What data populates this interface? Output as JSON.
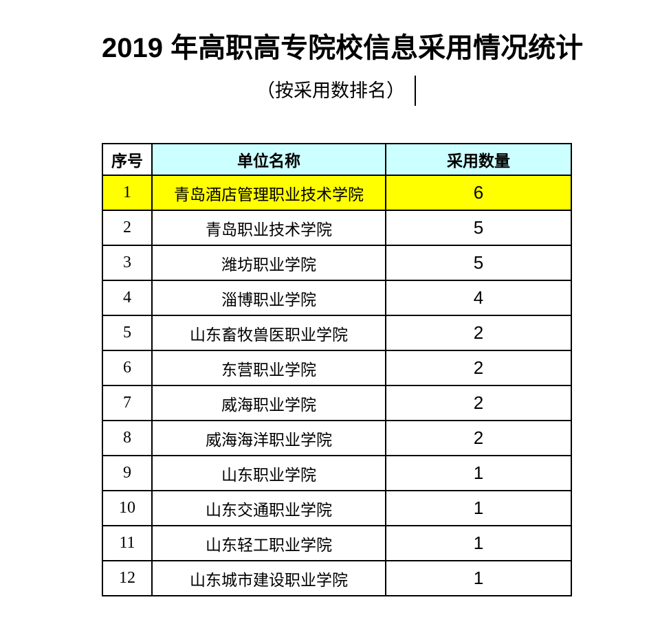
{
  "title": "2019 年高职高专院校信息采用情况统计",
  "subtitle": "（按采用数排名）",
  "table": {
    "headers": [
      "序号",
      "单位名称",
      "采用数量"
    ],
    "rows": [
      {
        "rank": "1",
        "name": "青岛酒店管理职业技术学院",
        "count": "6",
        "highlighted": true
      },
      {
        "rank": "2",
        "name": "青岛职业技术学院",
        "count": "5",
        "highlighted": false
      },
      {
        "rank": "3",
        "name": "潍坊职业学院",
        "count": "5",
        "highlighted": false
      },
      {
        "rank": "4",
        "name": "淄博职业学院",
        "count": "4",
        "highlighted": false
      },
      {
        "rank": "5",
        "name": "山东畜牧兽医职业学院",
        "count": "2",
        "highlighted": false
      },
      {
        "rank": "6",
        "name": "东营职业学院",
        "count": "2",
        "highlighted": false
      },
      {
        "rank": "7",
        "name": "威海职业学院",
        "count": "2",
        "highlighted": false
      },
      {
        "rank": "8",
        "name": "威海海洋职业学院",
        "count": "2",
        "highlighted": false
      },
      {
        "rank": "9",
        "name": "山东职业学院",
        "count": "1",
        "highlighted": false
      },
      {
        "rank": "10",
        "name": "山东交通职业学院",
        "count": "1",
        "highlighted": false
      },
      {
        "rank": "11",
        "name": "山东轻工职业学院",
        "count": "1",
        "highlighted": false
      },
      {
        "rank": "12",
        "name": "山东城市建设职业学院",
        "count": "1",
        "highlighted": false
      }
    ]
  },
  "colors": {
    "header_fill": "#CCFFFF",
    "highlight_fill": "#FFFF00",
    "border": "#000000",
    "background": "#FFFFFF",
    "text": "#000000"
  }
}
